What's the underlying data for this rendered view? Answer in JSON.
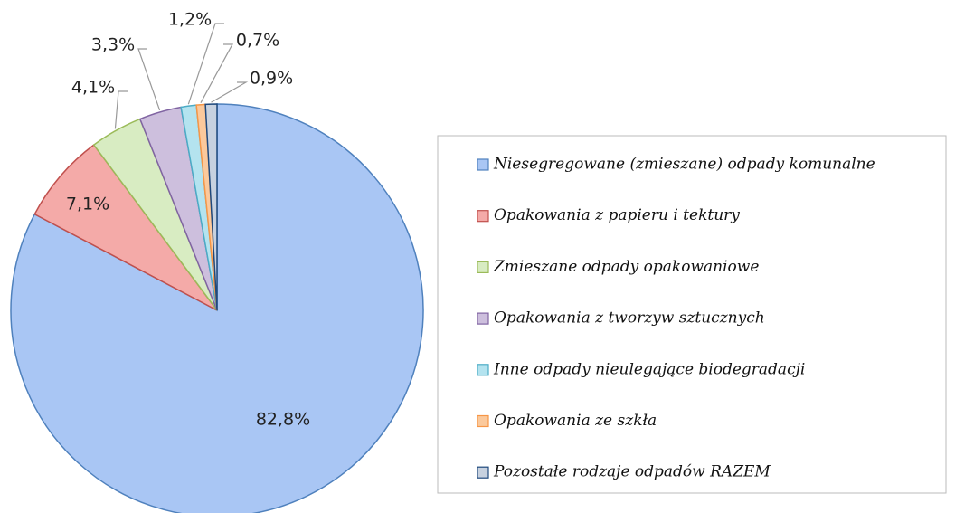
{
  "chart_data": {
    "type": "pie",
    "categories": [
      "Niesegregowane (zmieszane) odpady komunalne",
      "Opakowania z papieru i tektury",
      "Zmieszane odpady opakowaniowe",
      "Opakowania z tworzyw sztucznych",
      "Inne odpady nieulegające biodegradacji",
      "Opakowania ze szkła",
      "Pozostałe rodzaje odpadów RAZEM"
    ],
    "values": [
      82.8,
      7.1,
      4.1,
      3.3,
      1.2,
      0.7,
      0.9
    ],
    "value_labels": [
      "82,8%",
      "7,1%",
      "4,1%",
      "3,3%",
      "1,2%",
      "0,7%",
      "0,9%"
    ],
    "colors": [
      "#a9c6f4",
      "#f4aaa8",
      "#d8ecc2",
      "#cdbfdd",
      "#b4e3ef",
      "#fbc99c",
      "#c7d1df"
    ],
    "edge_colors": [
      "#4f81bd",
      "#c0504d",
      "#9bbb59",
      "#8064a2",
      "#4bacc6",
      "#f79646",
      "#1f497d"
    ],
    "legend": "right"
  }
}
